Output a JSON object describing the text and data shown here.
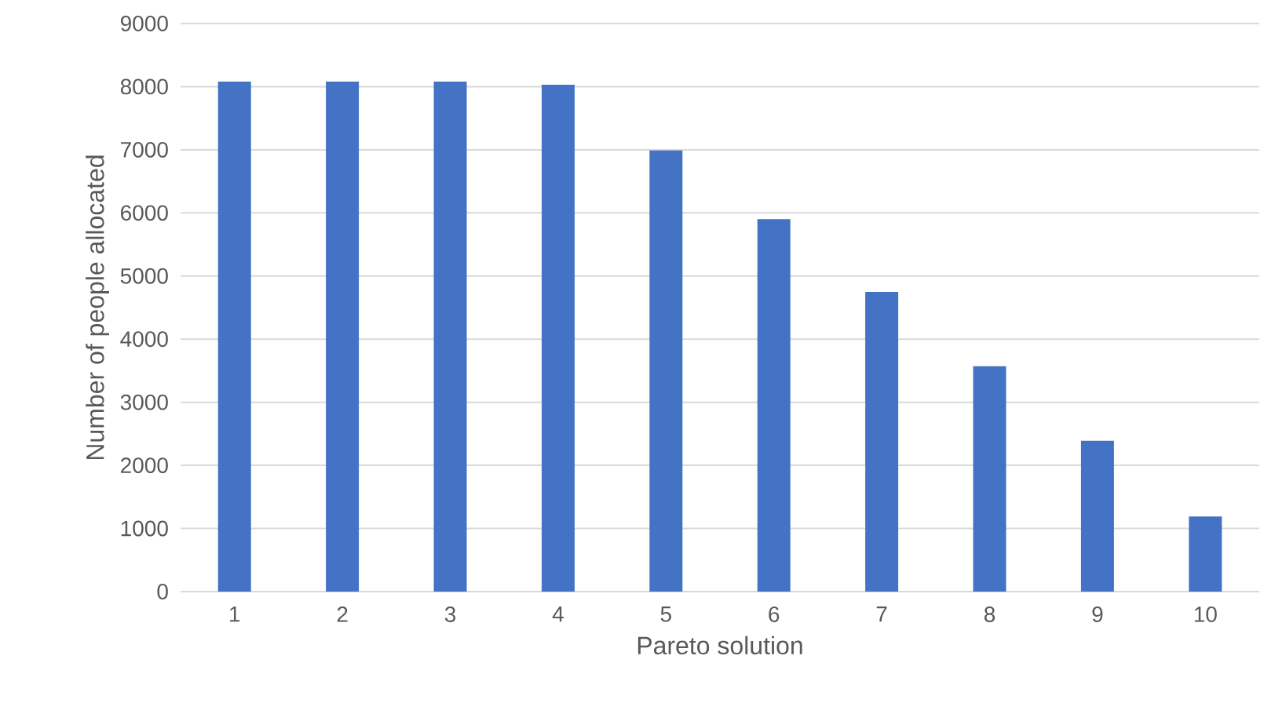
{
  "chart_data": {
    "type": "bar",
    "xlabel": "Pareto solution",
    "ylabel": "Number of people allocated",
    "categories": [
      "1",
      "2",
      "3",
      "4",
      "5",
      "6",
      "7",
      "8",
      "9",
      "10"
    ],
    "values": [
      8080,
      8080,
      8080,
      8030,
      6990,
      5900,
      4750,
      3570,
      2390,
      1190
    ],
    "color": "#4472c4",
    "ylim": [
      0,
      9000
    ],
    "yticks": [
      0,
      1000,
      2000,
      3000,
      4000,
      5000,
      6000,
      7000,
      8000,
      9000
    ],
    "grid": "y"
  }
}
